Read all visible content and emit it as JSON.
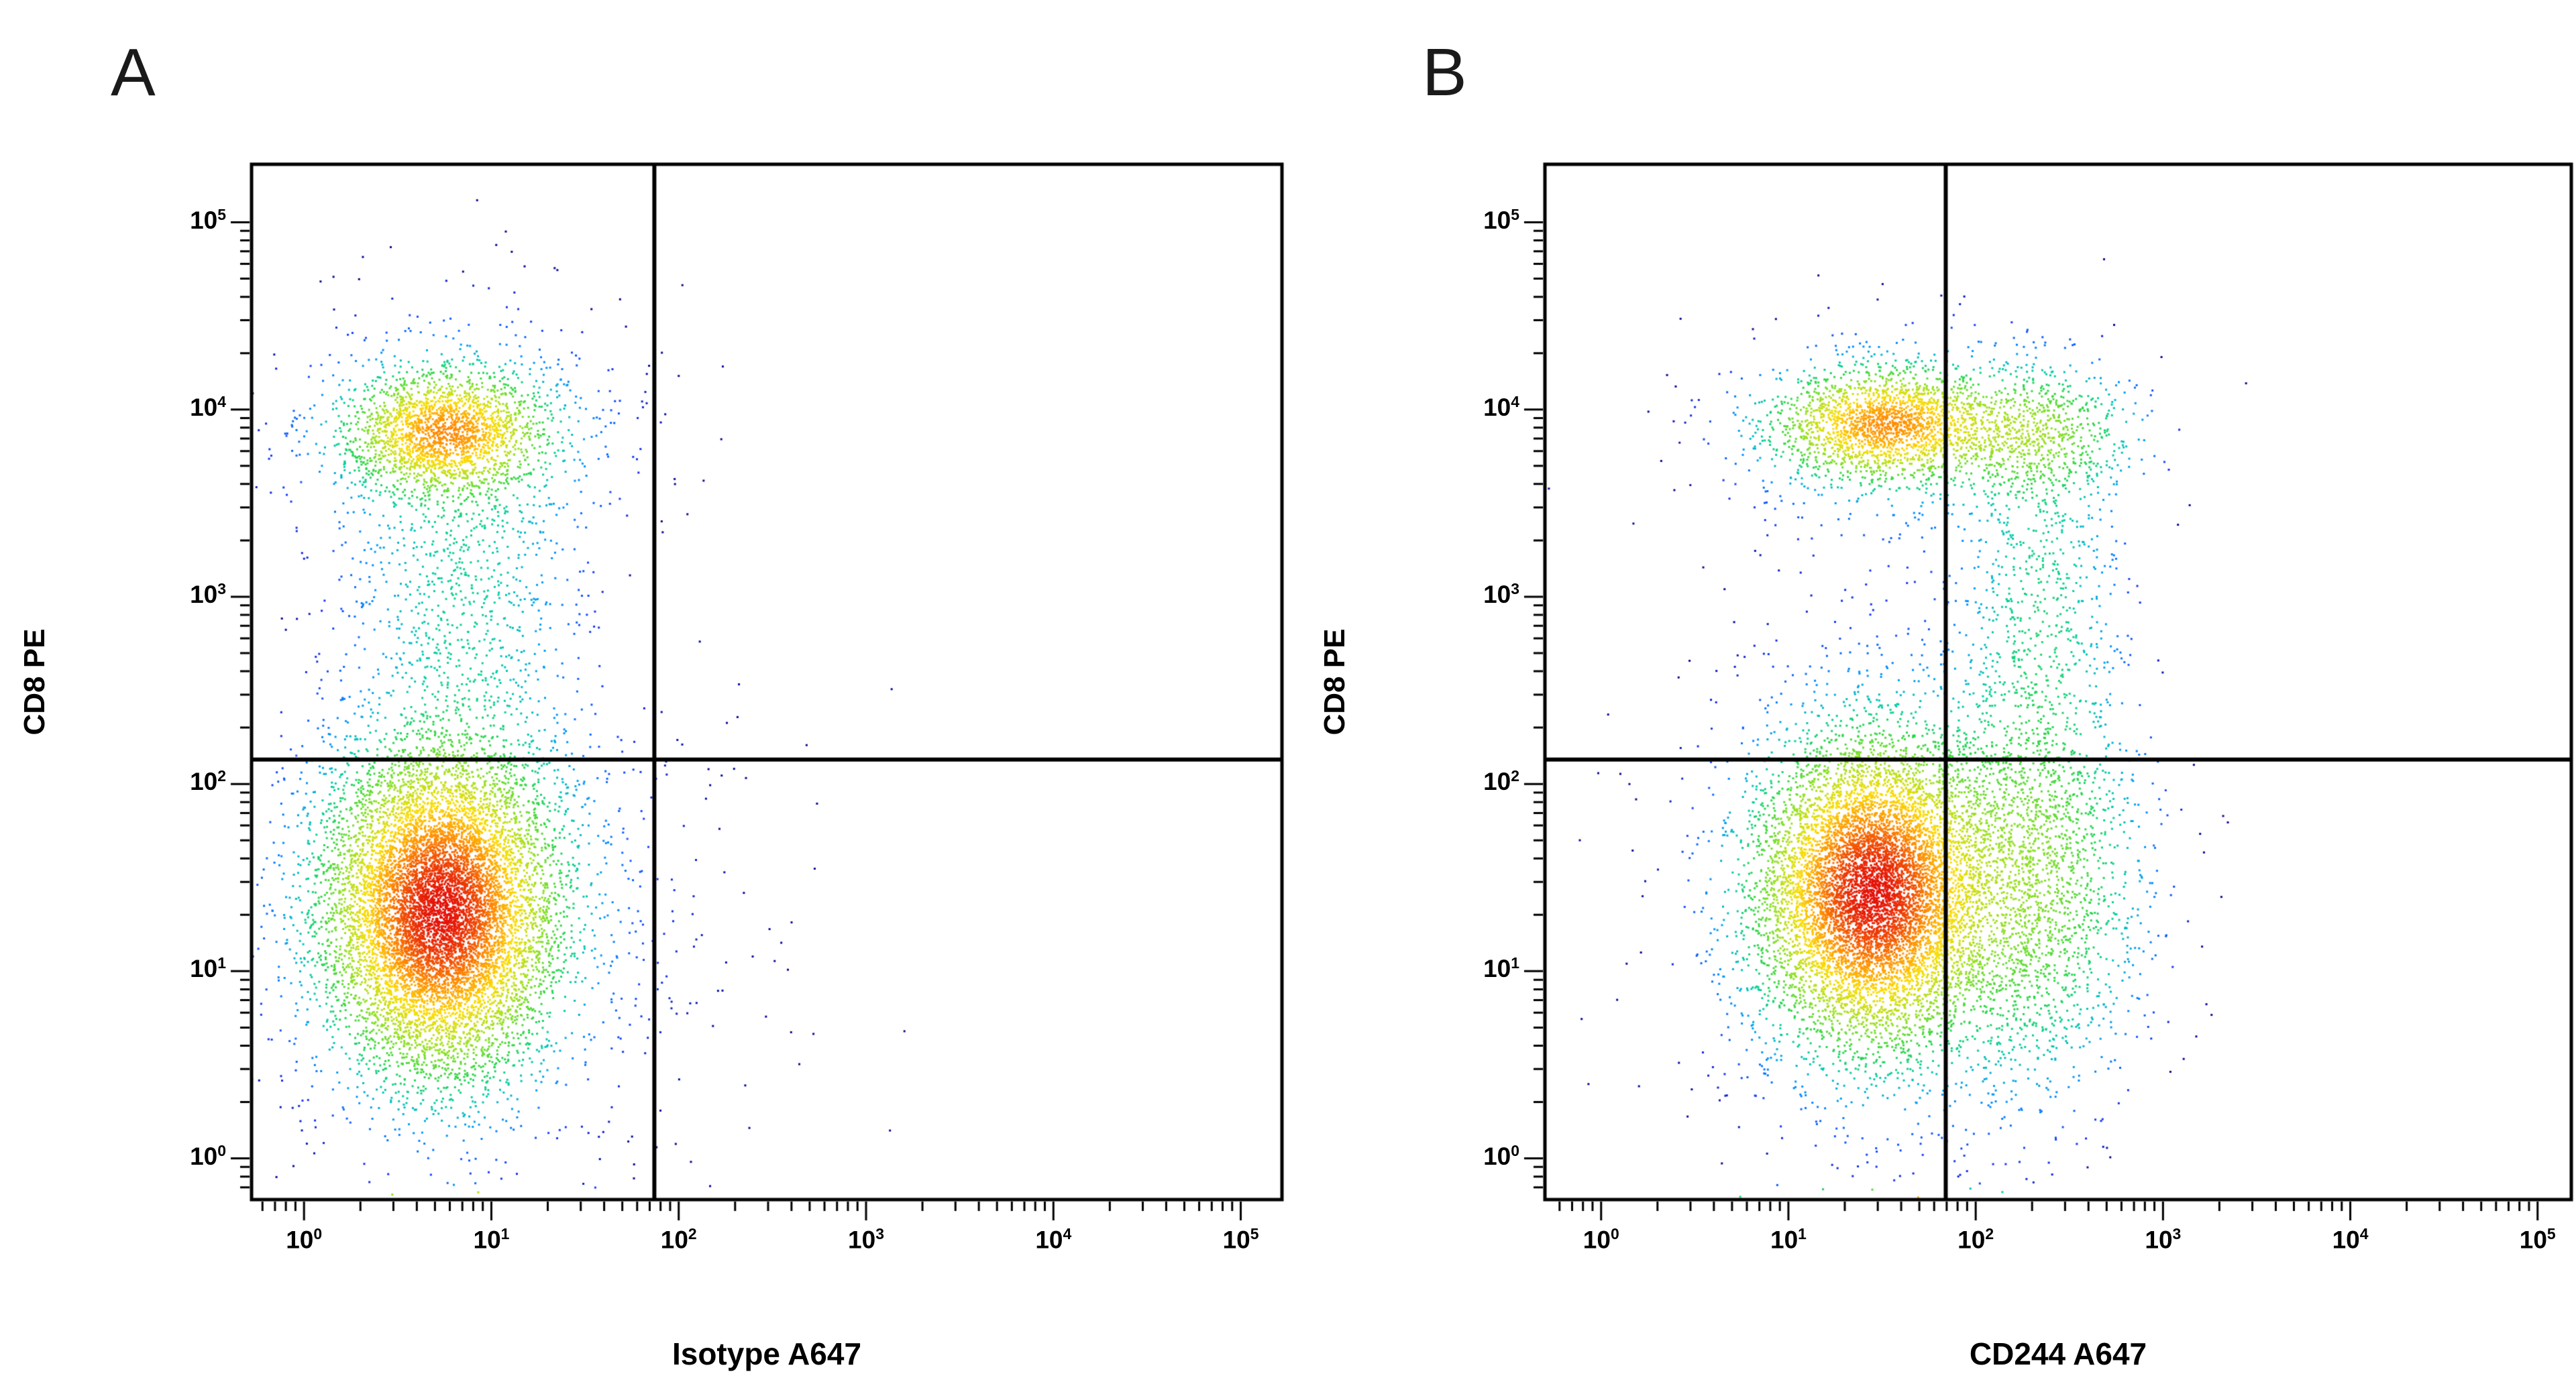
{
  "style": {
    "background": "#ffffff",
    "axis_color": "#000000",
    "density_range": 400,
    "colormap": [
      [
        0.0,
        [
          8,
          8,
          150
        ]
      ],
      [
        0.18,
        [
          20,
          60,
          255
        ]
      ],
      [
        0.38,
        [
          0,
          150,
          255
        ]
      ],
      [
        0.52,
        [
          0,
          205,
          170
        ]
      ],
      [
        0.63,
        [
          40,
          215,
          70
        ]
      ],
      [
        0.76,
        [
          160,
          225,
          30
        ]
      ],
      [
        0.86,
        [
          252,
          220,
          0
        ]
      ],
      [
        0.93,
        [
          255,
          140,
          0
        ]
      ],
      [
        1.0,
        [
          228,
          16,
          8
        ]
      ]
    ]
  },
  "chart_data": [
    {
      "type": "scatter",
      "subtype": "flow-cytometry-density",
      "panel_label": "A",
      "xlabel": "Isotype A647",
      "ylabel": "CD8 PE",
      "x_scale": "log10",
      "y_scale": "log10",
      "xlim_log": [
        -0.28,
        5.22
      ],
      "ylim_log": [
        -0.22,
        5.31
      ],
      "quadrant_gate_log": {
        "x": 1.87,
        "y": 2.13
      },
      "x_ticks": [
        {
          "base": "10",
          "exp": "0"
        },
        {
          "base": "10",
          "exp": "1"
        },
        {
          "base": "10",
          "exp": "2"
        },
        {
          "base": "10",
          "exp": "3"
        },
        {
          "base": "10",
          "exp": "4"
        },
        {
          "base": "10",
          "exp": "5"
        }
      ],
      "y_ticks": [
        {
          "base": "10",
          "exp": "0"
        },
        {
          "base": "10",
          "exp": "1"
        },
        {
          "base": "10",
          "exp": "2"
        },
        {
          "base": "10",
          "exp": "3"
        },
        {
          "base": "10",
          "exp": "4"
        },
        {
          "base": "10",
          "exp": "5"
        }
      ],
      "populations": [
        {
          "name": "cd8-positive-core",
          "center": [
            0.76,
            3.88
          ],
          "sigma": [
            0.26,
            0.16
          ],
          "count": 1900
        },
        {
          "name": "cd8-positive-halo",
          "center": [
            0.8,
            3.82
          ],
          "sigma": [
            0.5,
            0.38
          ],
          "count": 550
        },
        {
          "name": "intermediate-smear",
          "center": [
            0.85,
            2.95
          ],
          "sigma": [
            0.3,
            0.6
          ],
          "count": 750
        },
        {
          "name": "cd8-negative-core",
          "center": [
            0.73,
            1.32
          ],
          "sigma": [
            0.3,
            0.42
          ],
          "count": 9000
        },
        {
          "name": "cd8-negative-halo",
          "center": [
            0.8,
            1.45
          ],
          "sigma": [
            0.58,
            0.8
          ],
          "count": 1000
        },
        {
          "name": "right-sparse",
          "center": [
            1.95,
            1.2
          ],
          "sigma": [
            0.5,
            0.8
          ],
          "count": 60
        },
        {
          "name": "axis-pileup",
          "center": [
            0.85,
            -0.22
          ],
          "sigma": [
            0.32,
            0.03
          ],
          "count": 420,
          "baseline": true
        }
      ]
    },
    {
      "type": "scatter",
      "subtype": "flow-cytometry-density",
      "panel_label": "B",
      "xlabel": "CD244 A647",
      "ylabel": "CD8 PE",
      "x_scale": "log10",
      "y_scale": "log10",
      "xlim_log": [
        -0.3,
        5.18
      ],
      "ylim_log": [
        -0.22,
        5.31
      ],
      "quadrant_gate_log": {
        "x": 1.84,
        "y": 2.13
      },
      "x_ticks": [
        {
          "base": "10",
          "exp": "0"
        },
        {
          "base": "10",
          "exp": "1"
        },
        {
          "base": "10",
          "exp": "2"
        },
        {
          "base": "10",
          "exp": "3"
        },
        {
          "base": "10",
          "exp": "4"
        },
        {
          "base": "10",
          "exp": "5"
        }
      ],
      "y_ticks": [
        {
          "base": "10",
          "exp": "0"
        },
        {
          "base": "10",
          "exp": "1"
        },
        {
          "base": "10",
          "exp": "2"
        },
        {
          "base": "10",
          "exp": "3"
        },
        {
          "base": "10",
          "exp": "4"
        },
        {
          "base": "10",
          "exp": "5"
        }
      ],
      "populations": [
        {
          "name": "cd8-positive-cd244low",
          "center": [
            1.52,
            3.92
          ],
          "sigma": [
            0.3,
            0.15
          ],
          "count": 1900
        },
        {
          "name": "cd8-positive-cd244high",
          "center": [
            2.3,
            3.88
          ],
          "sigma": [
            0.28,
            0.18
          ],
          "count": 650
        },
        {
          "name": "cd8-positive-halo",
          "center": [
            1.7,
            3.85
          ],
          "sigma": [
            0.6,
            0.35
          ],
          "count": 450
        },
        {
          "name": "right-smear",
          "center": [
            2.35,
            2.95
          ],
          "sigma": [
            0.22,
            0.55
          ],
          "count": 600
        },
        {
          "name": "cd8-negative-main",
          "center": [
            1.45,
            1.42
          ],
          "sigma": [
            0.3,
            0.4
          ],
          "count": 7800
        },
        {
          "name": "cd8-negative-right",
          "center": [
            2.3,
            1.5
          ],
          "sigma": [
            0.3,
            0.55
          ],
          "count": 2000
        },
        {
          "name": "cd8-negative-halo",
          "center": [
            1.55,
            1.45
          ],
          "sigma": [
            0.6,
            0.78
          ],
          "count": 1000
        },
        {
          "name": "axis-pileup",
          "center": [
            1.5,
            -0.22
          ],
          "sigma": [
            0.38,
            0.03
          ],
          "count": 520,
          "baseline": true
        }
      ]
    }
  ]
}
